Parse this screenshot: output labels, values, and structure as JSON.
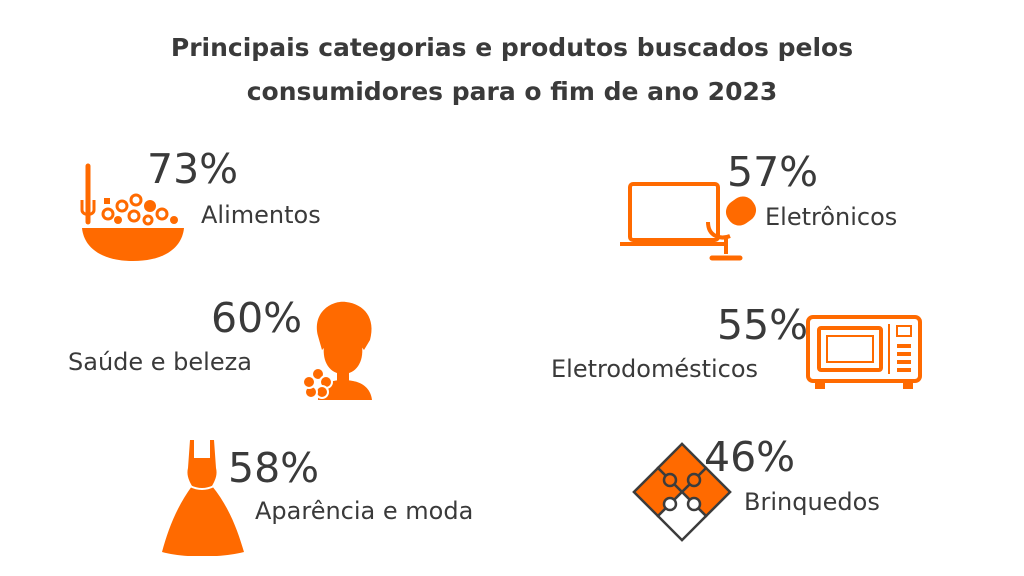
{
  "title_line1": "Principais categorias e produtos buscados pelos",
  "title_line2": "consumidores para o fim de ano 2023",
  "accent_color": "#ff6a00",
  "chart_data": {
    "type": "table",
    "title": "Principais categorias e produtos buscados pelos consumidores para o fim de ano 2023",
    "categories": [
      "Alimentos",
      "Eletrônicos",
      "Saúde e beleza",
      "Eletrodomésticos",
      "Aparência e moda",
      "Brinquedos"
    ],
    "values": [
      73,
      57,
      60,
      55,
      58,
      46
    ],
    "value_labels": [
      "73%",
      "57%",
      "60%",
      "55%",
      "58%",
      "46%"
    ],
    "icons": [
      "food-bowl-icon",
      "laptop-microphone-icon",
      "woman-towel-icon",
      "microwave-icon",
      "dress-icon",
      "puzzle-icon"
    ]
  }
}
